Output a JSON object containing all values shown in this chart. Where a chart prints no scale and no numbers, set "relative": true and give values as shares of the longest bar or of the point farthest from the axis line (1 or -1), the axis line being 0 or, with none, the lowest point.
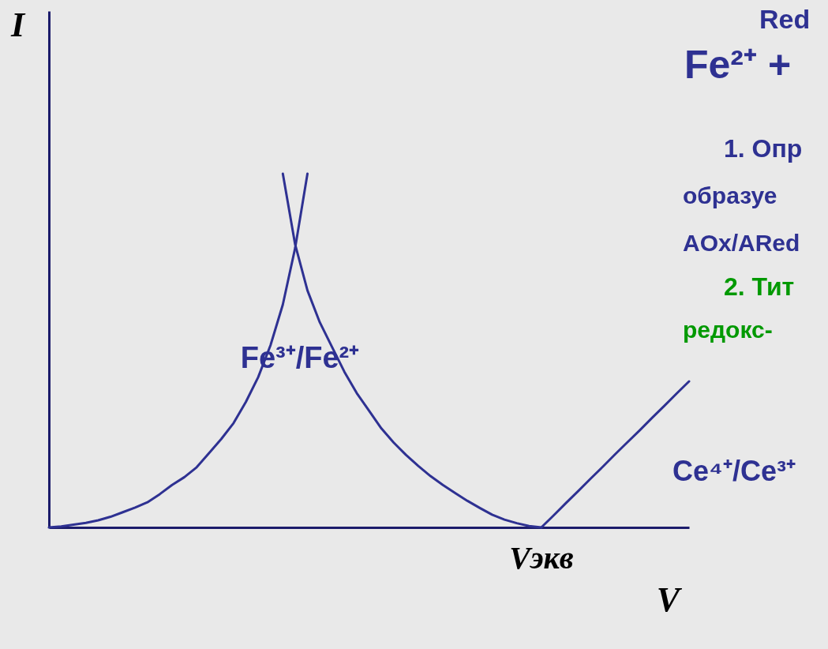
{
  "chart_data": {
    "type": "line",
    "relative": true,
    "xlabel": "V",
    "ylabel": "I",
    "categories": [
      null,
      null,
      null,
      null,
      null,
      null,
      null,
      null,
      null,
      null,
      null,
      null,
      null,
      null,
      null,
      null,
      null,
      null,
      null,
      null,
      null,
      null,
      null,
      null,
      null,
      null,
      null,
      null,
      null,
      null,
      null,
      null,
      null,
      null,
      null,
      null,
      null,
      null,
      null,
      null,
      null,
      null,
      null,
      null,
      null,
      null,
      null,
      null,
      null,
      null,
      null,
      null,
      null
    ],
    "series": [
      {
        "color": "#2e3192",
        "values": [
          0,
          0.003,
          0.008,
          0.013,
          0.02,
          0.03,
          0.043,
          0.056,
          0.071,
          0.094,
          0.12,
          0.142,
          0.17,
          0.21,
          0.25,
          0.295,
          0.355,
          0.425,
          0.515,
          0.63,
          0.79,
          1.0,
          null,
          null,
          null,
          null,
          null,
          null,
          null,
          null,
          null,
          null,
          null,
          null,
          null,
          null,
          null,
          null,
          null,
          null,
          null,
          null,
          null,
          null,
          null,
          null,
          null,
          null,
          null,
          null,
          null,
          null,
          null
        ]
      },
      {
        "color": "#2e3192",
        "values": [
          null,
          null,
          null,
          null,
          null,
          null,
          null,
          null,
          null,
          null,
          null,
          null,
          null,
          null,
          null,
          null,
          null,
          null,
          null,
          1.0,
          0.8,
          0.67,
          0.58,
          0.51,
          0.44,
          0.38,
          0.33,
          0.28,
          0.24,
          0.205,
          0.174,
          0.145,
          0.12,
          0.097,
          0.075,
          0.055,
          0.036,
          0.022,
          0.012,
          0.004,
          0,
          null,
          null,
          null,
          null,
          null,
          null,
          null,
          null,
          null,
          null,
          null,
          null
        ]
      },
      {
        "color": "#2e3192",
        "values": [
          null,
          null,
          null,
          null,
          null,
          null,
          null,
          null,
          null,
          null,
          null,
          null,
          null,
          null,
          null,
          null,
          null,
          null,
          null,
          null,
          null,
          null,
          null,
          null,
          null,
          null,
          null,
          null,
          null,
          null,
          null,
          null,
          null,
          null,
          null,
          null,
          null,
          null,
          null,
          null,
          0,
          0.034,
          0.069,
          0.103,
          0.138,
          0.172,
          0.207,
          0.241,
          0.275,
          0.31,
          0.344,
          0.379,
          0.413
        ]
      }
    ],
    "annotations": [
      "Fe³⁺/Fe²⁺",
      "Vэкв",
      "Ce⁴⁺/Ce³⁺",
      "Red",
      "Fe²⁺ +",
      "1. Опр",
      "образуе",
      "AOx/ARed",
      "2. Тит",
      "редокс-"
    ]
  }
}
